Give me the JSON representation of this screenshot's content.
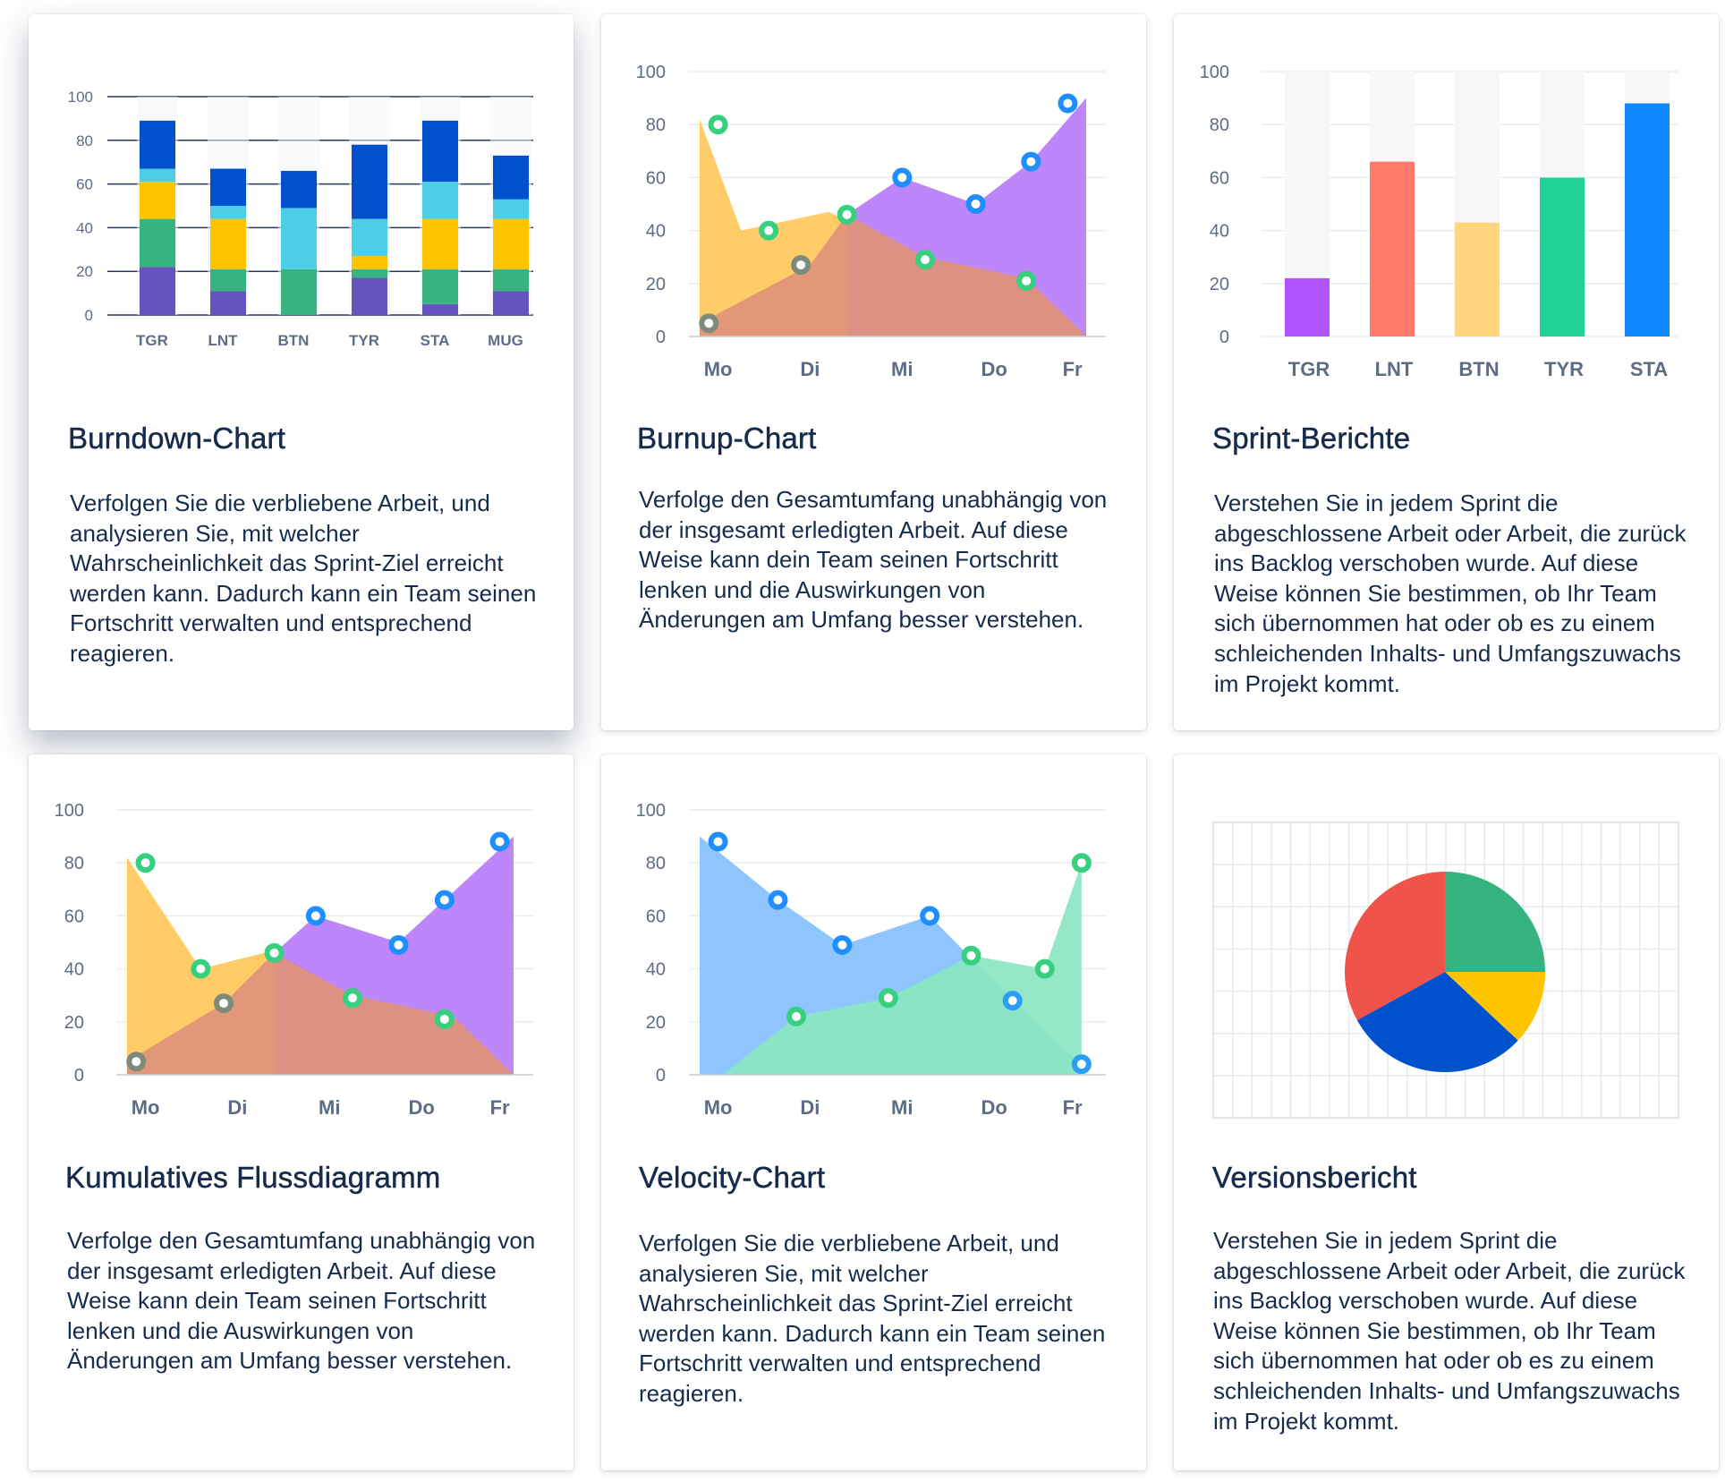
{
  "cards": [
    {
      "title": "Burndown-Chart",
      "description": "Verfolgen Sie die verbliebene Arbeit, und analysieren Sie, mit welcher Wahrscheinlichkeit das Sprint-Ziel erreicht werden kann. Dadurch kann ein Team seinen Fortschritt verwalten und entsprechend reagieren."
    },
    {
      "title": "Burnup-Chart",
      "description": "Verfolge den Gesamtumfang unabhängig von der insgesamt erledigten Arbeit. Auf diese Weise kann dein Team seinen Fortschritt lenken und die Auswirkungen von Änderungen am Umfang besser verstehen."
    },
    {
      "title": "Sprint-Berichte",
      "description": "Verstehen Sie in jedem Sprint die abgeschlossene Arbeit oder Arbeit, die zurück ins Backlog verschoben wurde. Auf diese Weise können Sie bestimmen, ob Ihr Team sich übernommen hat oder ob es zu einem schleichenden Inhalts- und Umfangszuwachs im Projekt kommt."
    },
    {
      "title": "Kumulatives Flussdiagramm",
      "description": "Verfolge den Gesamtumfang unabhängig von der insgesamt erledigten Arbeit. Auf diese Weise kann dein Team seinen Fortschritt lenken und die Auswirkungen von Änderungen am Umfang besser verstehen."
    },
    {
      "title": "Velocity-Chart",
      "description": "Verfolgen Sie die verbliebene Arbeit, und analysieren Sie, mit welcher Wahrscheinlichkeit das Sprint-Ziel erreicht werden kann. Dadurch kann ein Team seinen Fortschritt verwalten und entsprechend reagieren."
    },
    {
      "title": "Versionsbericht",
      "description": "Verstehen Sie in jedem Sprint die abgeschlossene Arbeit oder Arbeit, die zurück ins Backlog verschoben wurde. Auf diese Weise können Sie bestimmen, ob Ihr Team sich übernommen hat oder ob es zu einem schleichenden Inhalts- und Umfangszuwachs im Projekt kommt."
    }
  ],
  "chart_data": [
    {
      "type": "bar",
      "stacked": true,
      "categories": [
        "TGR",
        "LNT",
        "BTN",
        "TYR",
        "STA",
        "MUG"
      ],
      "ylim": [
        0,
        100
      ],
      "yticks": [
        0,
        20,
        40,
        60,
        80,
        100
      ],
      "grid": true,
      "series": [
        {
          "color": "#6554c0",
          "values": [
            22,
            11,
            0,
            17,
            5,
            11
          ]
        },
        {
          "color": "#36b37e",
          "values": [
            22,
            10,
            21,
            4,
            16,
            10
          ]
        },
        {
          "color": "#ffc400",
          "values": [
            17,
            23,
            0,
            6,
            23,
            23
          ]
        },
        {
          "color": "#4ecde6",
          "values": [
            6,
            6,
            28,
            17,
            17,
            9
          ]
        },
        {
          "color": "#0052cc",
          "values": [
            22,
            17,
            17,
            34,
            28,
            20
          ]
        }
      ]
    },
    {
      "type": "area",
      "categories": [
        "Mo",
        "Di",
        "Mi",
        "Do",
        "Fr"
      ],
      "ylim": [
        0,
        100
      ],
      "yticks": [
        0,
        20,
        40,
        60,
        80,
        100
      ],
      "grid": true,
      "series": [
        {
          "color": "#ffc85a",
          "x": [
            0,
            0.45,
            1.4,
            2.45,
            3.55,
            4.2
          ],
          "y": [
            82,
            40,
            47,
            30,
            22,
            0
          ],
          "markers": [
            [
              0.2,
              80
            ],
            [
              0.75,
              40
            ]
          ],
          "marker_color": "#36d07f"
        },
        {
          "color": "#b77cfb",
          "x": [
            1.6,
            2.2,
            3.0,
            3.6,
            4.2,
            4.2
          ],
          "y": [
            46,
            60,
            50,
            66,
            90,
            0
          ],
          "markers": [
            [
              2.2,
              60
            ],
            [
              3.0,
              50
            ],
            [
              3.6,
              66
            ],
            [
              4.0,
              88
            ]
          ],
          "marker_color": "#1f8fff"
        },
        {
          "color": "#e0927a",
          "x": [
            0,
            1.2,
            1.6,
            2.45,
            3.55,
            4.2
          ],
          "y": [
            5,
            27,
            46,
            30,
            22,
            0
          ],
          "markers": [
            [
              0.1,
              5
            ],
            [
              1.1,
              27
            ]
          ],
          "marker_color": "#7f8b7a"
        },
        {
          "color": "#36d07f",
          "x": [],
          "y": [],
          "markers": [
            [
              1.6,
              46
            ],
            [
              2.45,
              29
            ],
            [
              3.55,
              21
            ]
          ],
          "marker_color": "#36d07f"
        }
      ]
    },
    {
      "type": "bar",
      "categories": [
        "TGR",
        "LNT",
        "BTN",
        "TYR",
        "STA"
      ],
      "values": [
        22,
        66,
        43,
        60,
        88
      ],
      "colors": [
        "#b054ff",
        "#ff7a68",
        "#ffd57e",
        "#21d496",
        "#0f88ff"
      ],
      "ylim": [
        0,
        100
      ],
      "yticks": [
        0,
        20,
        40,
        60,
        80,
        100
      ],
      "grid": true
    },
    {
      "type": "area",
      "categories": [
        "Mo",
        "Di",
        "Mi",
        "Do",
        "Fr"
      ],
      "ylim": [
        0,
        100
      ],
      "yticks": [
        0,
        20,
        40,
        60,
        80,
        100
      ],
      "grid": true,
      "series": [
        {
          "color": "#ffc85a",
          "x": [
            0,
            0.8,
            1.6,
            2.45,
            3.55,
            4.2
          ],
          "y": [
            82,
            40,
            47,
            30,
            22,
            0
          ],
          "markers": [
            [
              0.2,
              80
            ],
            [
              0.8,
              40
            ]
          ],
          "marker_color": "#36d07f"
        },
        {
          "color": "#b77cfb",
          "x": [
            1.6,
            2.05,
            2.95,
            3.45,
            4.2,
            4.2
          ],
          "y": [
            46,
            60,
            50,
            66,
            90,
            0
          ],
          "markers": [
            [
              2.05,
              60
            ],
            [
              2.95,
              49
            ],
            [
              3.45,
              66
            ],
            [
              4.05,
              88
            ]
          ],
          "marker_color": "#1f8fff"
        },
        {
          "color": "#e0927a",
          "x": [
            0,
            1.05,
            1.6,
            2.45,
            3.55,
            4.2
          ],
          "y": [
            5,
            27,
            46,
            30,
            22,
            0
          ],
          "markers": [
            [
              0.1,
              5
            ],
            [
              1.05,
              27
            ]
          ],
          "marker_color": "#7f8b7a"
        },
        {
          "color": "#36d07f",
          "x": [],
          "y": [],
          "markers": [
            [
              1.6,
              46
            ],
            [
              2.45,
              29
            ],
            [
              3.45,
              21
            ]
          ],
          "marker_color": "#36d07f"
        }
      ]
    },
    {
      "type": "area",
      "categories": [
        "Mo",
        "Di",
        "Mi",
        "Do",
        "Fr"
      ],
      "ylim": [
        0,
        100
      ],
      "yticks": [
        0,
        20,
        40,
        60,
        80,
        100
      ],
      "grid": true,
      "series": [
        {
          "color": "#85c0ff",
          "x": [
            0,
            0.85,
            1.55,
            2.5,
            3.4,
            4.15
          ],
          "y": [
            90,
            66,
            49,
            60,
            28,
            4
          ],
          "markers": [
            [
              0.2,
              88
            ],
            [
              0.85,
              66
            ],
            [
              1.55,
              49
            ],
            [
              2.5,
              60
            ]
          ],
          "marker_color": "#1f8fff"
        },
        {
          "color": "#8ce6c2",
          "x": [
            0.25,
            1.05,
            2.05,
            2.95,
            3.75,
            4.15
          ],
          "y": [
            0,
            22,
            29,
            45,
            40,
            80
          ],
          "markers": [
            [
              1.05,
              22
            ],
            [
              2.05,
              29
            ],
            [
              2.95,
              45
            ],
            [
              3.75,
              40
            ],
            [
              4.15,
              80
            ]
          ],
          "marker_color": "#36d07f"
        },
        {
          "color": "#4ecbc8",
          "x": [],
          "y": [],
          "markers": [
            [
              3.4,
              28
            ],
            [
              4.15,
              4
            ]
          ],
          "marker_color": "#2a9df5"
        }
      ]
    },
    {
      "type": "pie",
      "slices": [
        {
          "value": 25,
          "color": "#36b37e"
        },
        {
          "value": 12,
          "color": "#ffc400"
        },
        {
          "value": 30,
          "color": "#0052cc"
        },
        {
          "value": 33,
          "color": "#f0534a"
        }
      ]
    }
  ]
}
